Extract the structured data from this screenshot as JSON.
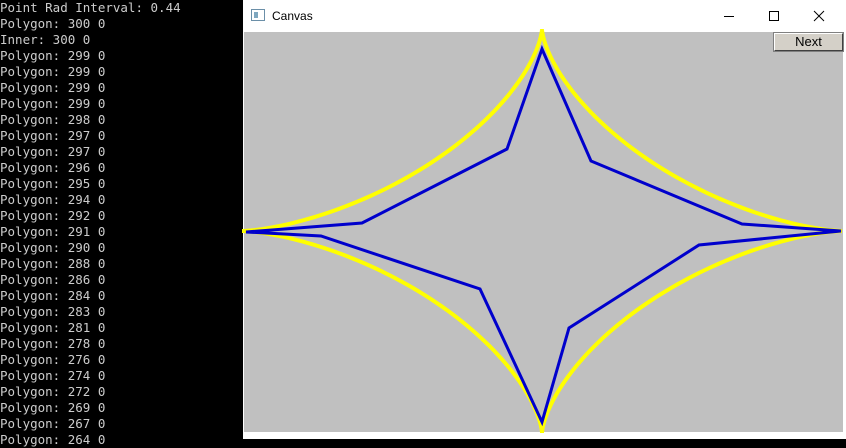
{
  "console": {
    "lines": [
      "Point Rad Interval: 0.44",
      "Polygon: 300 0",
      "Inner: 300 0",
      "Polygon: 299 0",
      "Polygon: 299 0",
      "Polygon: 299 0",
      "Polygon: 299 0",
      "Polygon: 298 0",
      "Polygon: 297 0",
      "Polygon: 297 0",
      "Polygon: 296 0",
      "Polygon: 295 0",
      "Polygon: 294 0",
      "Polygon: 292 0",
      "Polygon: 291 0",
      "Polygon: 290 0",
      "Polygon: 288 0",
      "Polygon: 286 0",
      "Polygon: 284 0",
      "Polygon: 283 0",
      "Polygon: 281 0",
      "Polygon: 278 0",
      "Polygon: 276 0",
      "Polygon: 274 0",
      "Polygon: 272 0",
      "Polygon: 269 0",
      "Polygon: 267 0",
      "Polygon: 264 0"
    ],
    "text_color": "#cccccc",
    "background": "#000000"
  },
  "window": {
    "title": "Canvas",
    "app_icon": "window-app-icon",
    "controls": {
      "minimize_icon": "minimize-icon",
      "maximize_icon": "maximize-icon",
      "close_icon": "close-icon"
    },
    "canvas": {
      "background": "#c0c0c0",
      "next_button_label": "Next",
      "curve_color": "#ffff00",
      "polygon_color": "#0000cc"
    }
  }
}
